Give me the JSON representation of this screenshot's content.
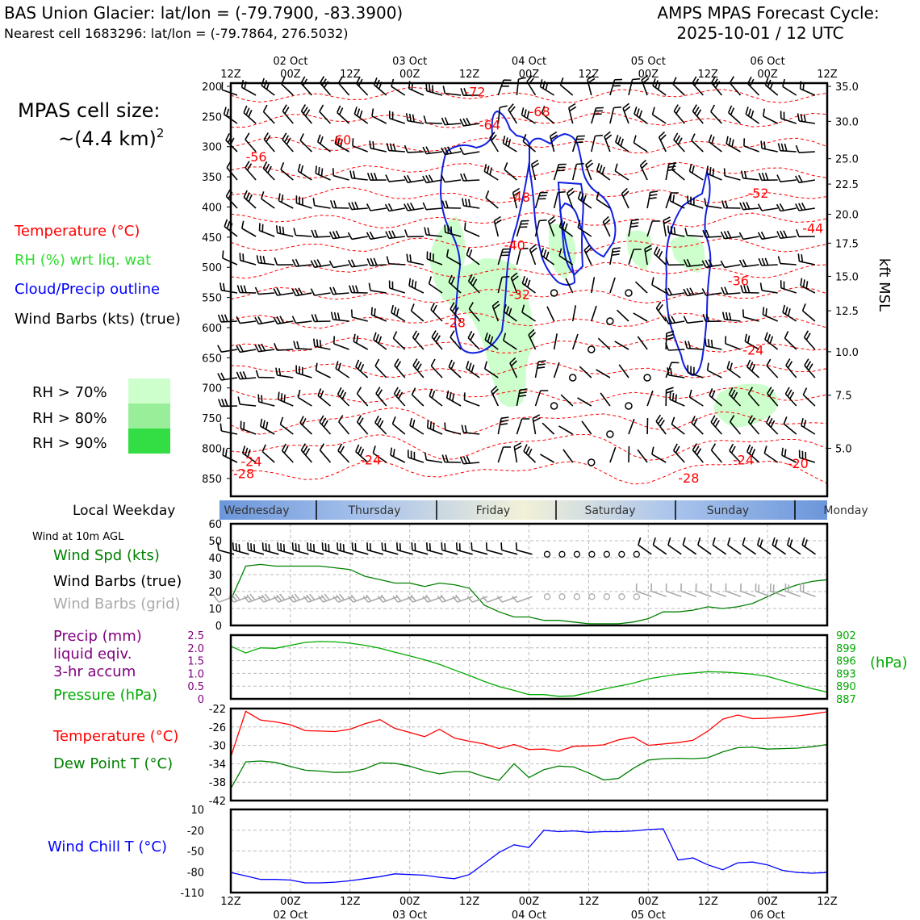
{
  "header": {
    "title_left": "BAS Union Glacier: lat/lon = (-79.7900, -83.3900)",
    "subtitle_left": "Nearest cell 1683296: lat/lon = (-79.7864, 276.5032)",
    "title_right_1": "AMPS MPAS Forecast Cycle:",
    "title_right_2": "2025-10-01 / 12 UTC"
  },
  "left_panel": {
    "cell_size_line1": "MPAS cell size:",
    "cell_size_line2": "~(4.4 km)",
    "cell_size_exp": "2",
    "legend_temperature": "Temperature (°C)",
    "legend_rh": "RH (%) wrt liq. wat",
    "legend_cloud": "Cloud/Precip outline",
    "legend_wind": "Wind Barbs (kts) (true)",
    "rh_levels": [
      {
        "label": "RH > 70%",
        "color": "#ccffcc"
      },
      {
        "label": "RH > 80%",
        "color": "#99ee99"
      },
      {
        "label": "RH > 90%",
        "color": "#33dd44"
      }
    ],
    "weekday_label": "Local Weekday",
    "wind10m_label": "Wind at 10m AGL",
    "wind_spd_label": "Wind Spd (kts)",
    "wind_barbs_true_label": "Wind Barbs (true)",
    "wind_barbs_grid_label": "Wind Barbs (grid)",
    "precip_label_1": "Precip (mm)",
    "precip_label_2": "liquid eqiv.",
    "precip_label_3": "3-hr accum",
    "pressure_label": "Pressure (hPa)",
    "temp_label": "Temperature (°C)",
    "dew_label": "Dew Point T (°C)",
    "chill_label": "Wind Chill T (°C)"
  },
  "time_axis": {
    "hours": [
      "12Z",
      "00Z",
      "12Z",
      "00Z",
      "12Z",
      "00Z",
      "12Z",
      "00Z",
      "12Z",
      "00Z",
      "12Z"
    ],
    "dates": [
      "",
      "02 Oct",
      "",
      "03 Oct",
      "",
      "04 Oct",
      "",
      "05 Oct",
      "",
      "06 Oct",
      ""
    ]
  },
  "weekdays": [
    "Wednesday",
    "Thursday",
    "Friday",
    "Saturday",
    "Sunday",
    "Monday"
  ],
  "colors": {
    "temperature": "#ff0000",
    "rh": "#33dd33",
    "cloud": "#0000ff",
    "wind": "#000000",
    "wind_grid": "#aaaaaa",
    "precip": "#800080",
    "pressure": "#00aa00",
    "dewpoint": "#008000",
    "windchill": "#0000ff"
  },
  "chart_data": [
    {
      "type": "heatmap",
      "name": "upper-air cross section",
      "y_pressure_ticks": [
        200,
        250,
        300,
        350,
        400,
        450,
        500,
        550,
        600,
        650,
        700,
        750,
        800,
        850
      ],
      "y_height_label": "kft MSL",
      "y_height_ticks": [
        "35.0",
        "30.0",
        "25.0",
        "22.5",
        "20.0",
        "17.5",
        "15.0",
        "12.5",
        "10.0",
        "7.5",
        "5.0"
      ],
      "y_height_pressures": [
        200,
        258,
        320,
        362,
        412,
        460,
        515,
        572,
        640,
        712,
        800
      ],
      "ylim_hpa": [
        200,
        885
      ],
      "xlim_hours": [
        0,
        120
      ],
      "temperature_contour_labels": [
        {
          "text": "-72",
          "t": 47,
          "p": 222
        },
        {
          "text": "-68",
          "t": 60,
          "p": 255
        },
        {
          "text": "-64",
          "t": 50,
          "p": 277
        },
        {
          "text": "-60",
          "t": 20,
          "p": 302
        },
        {
          "text": "-56",
          "t": 3,
          "p": 330
        },
        {
          "text": "-52",
          "t": 104,
          "p": 390
        },
        {
          "text": "-48",
          "t": 56,
          "p": 397
        },
        {
          "text": "-44",
          "t": 115,
          "p": 448
        },
        {
          "text": "-40",
          "t": 55,
          "p": 476
        },
        {
          "text": "-36",
          "t": 100,
          "p": 535
        },
        {
          "text": "-32",
          "t": 56,
          "p": 558
        },
        {
          "text": "-28",
          "t": 43,
          "p": 605
        },
        {
          "text": "-24",
          "t": 103,
          "p": 650
        },
        {
          "text": "-24",
          "t": 2,
          "p": 835
        },
        {
          "text": "-28",
          "t": 0,
          "p": 855
        },
        {
          "text": "-24",
          "t": 26,
          "p": 832
        },
        {
          "text": "-28",
          "t": 90,
          "p": 862
        },
        {
          "text": "-24",
          "t": 101,
          "p": 832
        },
        {
          "text": "-20",
          "t": 112,
          "p": 838
        }
      ]
    },
    {
      "type": "line",
      "name": "wind speed 10m",
      "ylim": [
        0,
        60
      ],
      "y_ticks": [
        0,
        10,
        20,
        30,
        40,
        50,
        60
      ],
      "x": [
        0,
        3,
        6,
        9,
        12,
        15,
        18,
        21,
        24,
        27,
        30,
        33,
        36,
        39,
        42,
        45,
        48,
        51,
        54,
        57,
        60,
        63,
        66,
        69,
        72,
        75,
        78,
        81,
        84,
        87,
        90,
        93,
        96,
        99,
        102,
        105,
        108,
        111,
        114,
        117,
        120
      ],
      "values": [
        15,
        35,
        36,
        35,
        35,
        35,
        35,
        34,
        33,
        29,
        27,
        25,
        25,
        23,
        25,
        24,
        22,
        12,
        8,
        5,
        5,
        3,
        3,
        2,
        1,
        1,
        1,
        2,
        4,
        8,
        8,
        9,
        11,
        10,
        11,
        13,
        17,
        21,
        24,
        26,
        27
      ]
    },
    {
      "type": "line",
      "name": "pressure and precip",
      "precip_ylim": [
        0,
        2.5
      ],
      "precip_ticks": [
        "0",
        "0.5",
        "1.0",
        "1.5",
        "2.0",
        "2.5"
      ],
      "pressure_ylim": [
        887,
        902
      ],
      "pressure_ticks": [
        "887",
        "890",
        "893",
        "896",
        "899",
        "902"
      ],
      "pressure_unit": "(hPa)",
      "x": [
        0,
        3,
        6,
        9,
        12,
        15,
        18,
        21,
        24,
        27,
        30,
        33,
        36,
        39,
        42,
        45,
        48,
        51,
        54,
        57,
        60,
        63,
        66,
        69,
        72,
        75,
        78,
        81,
        84,
        87,
        90,
        93,
        96,
        99,
        102,
        105,
        108,
        111,
        114,
        117,
        120
      ],
      "pressure": [
        899.4,
        897.8,
        899,
        898.9,
        899.6,
        900.3,
        900.5,
        900.4,
        900.1,
        899.6,
        898.9,
        898,
        897.1,
        896.2,
        895.1,
        893.8,
        892.5,
        891.1,
        889.9,
        889,
        888,
        888,
        887.6,
        887.7,
        888.5,
        889.3,
        890,
        890.7,
        891.7,
        892.3,
        892.8,
        893.1,
        893.4,
        893.3,
        893.1,
        892.8,
        892.3,
        891.3,
        890.3,
        889.4,
        888.6
      ]
    },
    {
      "type": "line",
      "name": "temperature and dewpoint",
      "ylim": [
        -42,
        -22
      ],
      "y_ticks": [
        -42,
        -38,
        -34,
        -30,
        -26,
        -22
      ],
      "x": [
        0,
        3,
        6,
        9,
        12,
        15,
        18,
        21,
        24,
        27,
        30,
        33,
        36,
        39,
        42,
        45,
        48,
        51,
        54,
        57,
        60,
        63,
        66,
        69,
        72,
        75,
        78,
        81,
        84,
        87,
        90,
        93,
        96,
        99,
        102,
        105,
        108,
        111,
        114,
        117,
        120
      ],
      "temperature": [
        -32.5,
        -22.6,
        -24.5,
        -24.9,
        -25.5,
        -26.8,
        -26.9,
        -27,
        -26.5,
        -25.3,
        -24.4,
        -26.3,
        -27.2,
        -28.1,
        -26.5,
        -28.4,
        -29.1,
        -29.7,
        -30.7,
        -29.8,
        -30.9,
        -30.8,
        -31.3,
        -30.2,
        -30.1,
        -29.9,
        -28.8,
        -28.2,
        -30,
        -29.7,
        -29.4,
        -28.9,
        -26.9,
        -24.3,
        -23.4,
        -24.2,
        -24.1,
        -23.9,
        -23.6,
        -23.2,
        -22.7
      ],
      "dewpoint": [
        -39.4,
        -33.6,
        -33.4,
        -33.7,
        -34.6,
        -35.4,
        -35.6,
        -35.9,
        -35.8,
        -35.1,
        -33.8,
        -33.9,
        -34.5,
        -35.5,
        -36.2,
        -35.7,
        -35.7,
        -36.8,
        -37.6,
        -34,
        -37,
        -35.3,
        -34.5,
        -34.7,
        -36,
        -37.5,
        -37.2,
        -35,
        -33.2,
        -32.9,
        -32.8,
        -32.9,
        -32.7,
        -31.4,
        -30.5,
        -30.4,
        -30.8,
        -30.7,
        -30.6,
        -30.3,
        -29.8
      ]
    },
    {
      "type": "line",
      "name": "wind chill",
      "ylim": [
        -110,
        10
      ],
      "y_ticks": [
        -110,
        -80,
        -50,
        -20,
        10
      ],
      "x": [
        0,
        3,
        6,
        9,
        12,
        15,
        18,
        21,
        24,
        27,
        30,
        33,
        36,
        39,
        42,
        45,
        48,
        51,
        54,
        57,
        60,
        63,
        66,
        69,
        72,
        75,
        78,
        81,
        84,
        87,
        90,
        93,
        96,
        99,
        102,
        105,
        108,
        111,
        114,
        117,
        120
      ],
      "values": [
        -81,
        -86,
        -91,
        -91,
        -92,
        -96,
        -96,
        -95,
        -93,
        -90,
        -87,
        -83,
        -84,
        -85,
        -88,
        -90,
        -84,
        -68,
        -52,
        -41,
        -45,
        -20,
        -22,
        -21,
        -23,
        -22,
        -22,
        -21,
        -19,
        -18,
        -63,
        -60,
        -70,
        -77,
        -67,
        -66,
        -70,
        -78,
        -81,
        -82,
        -81
      ]
    }
  ]
}
